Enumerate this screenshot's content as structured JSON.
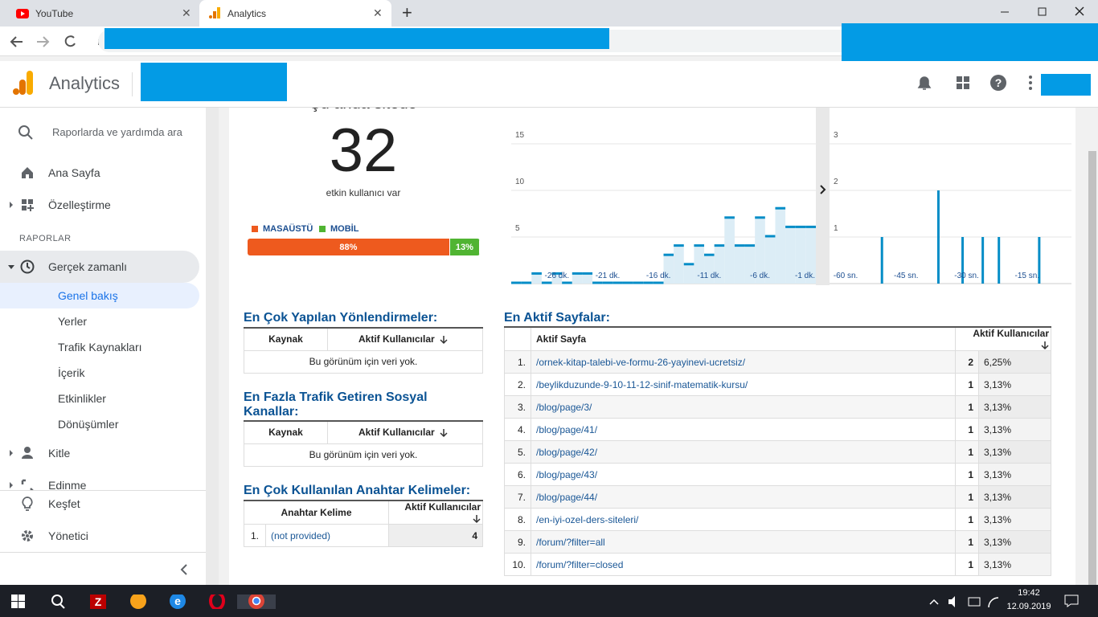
{
  "browser": {
    "tabs": [
      "YouTube",
      "Analytics"
    ]
  },
  "header": {
    "title": "Analytics"
  },
  "sidebar": {
    "search": "Raporlarda ve yardımda ara",
    "top_items": [
      "Ana Sayfa",
      "Özelleştirme"
    ],
    "section": "RAPORLAR",
    "realtime": "Gerçek zamanlı",
    "realtime_items": [
      "Genel bakış",
      "Yerler",
      "Trafik Kaynakları",
      "İçerik",
      "Etkinlikler",
      "Dönüşümler"
    ],
    "more_items": [
      "Kitle",
      "Edinme"
    ],
    "bottom_items": [
      "Keşfet",
      "Yönetici"
    ]
  },
  "overview": {
    "heading": "Şu anda sitede",
    "active_users": 32,
    "caption": "etkin kullanıcı var",
    "devices": [
      {
        "name": "MASAÜSTÜ",
        "color": "#ee5a1e",
        "value": 88,
        "value_label": "88%"
      },
      {
        "name": "MOBİL",
        "color": "#50b432",
        "value": 13,
        "value_label": "13%"
      }
    ]
  },
  "chart_data": [
    {
      "type": "step",
      "color": "#058dc7",
      "fill": "#dcedf6",
      "x": [
        -30,
        -29,
        -28,
        -27,
        -26,
        -25,
        -24,
        -23,
        -22,
        -21,
        -20,
        -19,
        -18,
        -17,
        -16,
        -15,
        -14,
        -13,
        -12,
        -11,
        -10,
        -9,
        -8,
        -7,
        -6,
        -5,
        -4,
        -3,
        -2,
        -1
      ],
      "values": [
        0,
        0,
        1,
        0,
        1,
        0,
        1,
        1,
        0,
        0,
        0,
        0,
        0,
        0,
        0,
        3,
        4,
        2,
        4,
        3,
        4,
        7,
        4,
        4,
        7,
        5,
        8,
        6,
        6,
        6
      ],
      "xlim": [
        -30.5,
        -0.5
      ],
      "ylim": [
        0,
        17.5
      ],
      "yticks": [
        5,
        10,
        15
      ],
      "xticks": [
        {
          "value": -26,
          "label": "-26 dk."
        },
        {
          "value": -21,
          "label": "-21 dk."
        },
        {
          "value": -16,
          "label": "-16 dk."
        },
        {
          "value": -11,
          "label": "-11 dk."
        },
        {
          "value": -6,
          "label": "-6 dk."
        },
        {
          "value": -1,
          "label": "-1 dk."
        }
      ],
      "grid": true
    },
    {
      "type": "bar",
      "color": "#058dc7",
      "x": [
        -51,
        -37,
        -31,
        -26,
        -22,
        -12
      ],
      "values": [
        1,
        2,
        1,
        1,
        1,
        1
      ],
      "xlim": [
        -64,
        -4
      ],
      "ylim": [
        0,
        3.5
      ],
      "yticks": [
        1,
        2,
        3
      ],
      "xticks": [
        {
          "value": -60,
          "label": "-60 sn."
        },
        {
          "value": -45,
          "label": "-45 sn."
        },
        {
          "value": -30,
          "label": "-30 sn."
        },
        {
          "value": -15,
          "label": "-15 sn."
        }
      ],
      "grid": true
    }
  ],
  "tables": {
    "referrals": {
      "title": "En Çok Yapılan Yönlendirmeler:",
      "columns": [
        "Kaynak",
        "Aktif Kullanıcılar"
      ],
      "empty": "Bu görünüm için veri yok."
    },
    "social": {
      "title": "En Fazla Trafik Getiren Sosyal Kanallar:",
      "columns": [
        "Kaynak",
        "Aktif Kullanıcılar"
      ],
      "empty": "Bu görünüm için veri yok."
    },
    "keywords": {
      "title": "En Çok Kullanılan Anahtar Kelimeler:",
      "columns": [
        "Anahtar Kelime",
        "Aktif Kullanıcılar"
      ],
      "rows": [
        [
          "1.",
          "(not provided)",
          4
        ]
      ]
    },
    "pages": {
      "title": "En Aktif Sayfalar:",
      "columns": [
        "Aktif Sayfa",
        "Aktif Kullanıcılar"
      ],
      "rows": [
        [
          "1.",
          "/ornek-kitap-talebi-ve-formu-26-yayinevi-ucretsiz/",
          2,
          "6,25%"
        ],
        [
          "2.",
          "/beylikduzunde-9-10-11-12-sinif-matematik-kursu/",
          1,
          "3,13%"
        ],
        [
          "3.",
          "/blog/page/3/",
          1,
          "3,13%"
        ],
        [
          "4.",
          "/blog/page/41/",
          1,
          "3,13%"
        ],
        [
          "5.",
          "/blog/page/42/",
          1,
          "3,13%"
        ],
        [
          "6.",
          "/blog/page/43/",
          1,
          "3,13%"
        ],
        [
          "7.",
          "/blog/page/44/",
          1,
          "3,13%"
        ],
        [
          "8.",
          "/en-iyi-ozel-ders-siteleri/",
          1,
          "3,13%"
        ],
        [
          "9.",
          "/forum/?filter=all",
          1,
          "3,13%"
        ],
        [
          "10.",
          "/forum/?filter=closed",
          1,
          "3,13%"
        ]
      ]
    }
  },
  "taskbar": {
    "time": "19:42",
    "date": "12.09.2019"
  }
}
